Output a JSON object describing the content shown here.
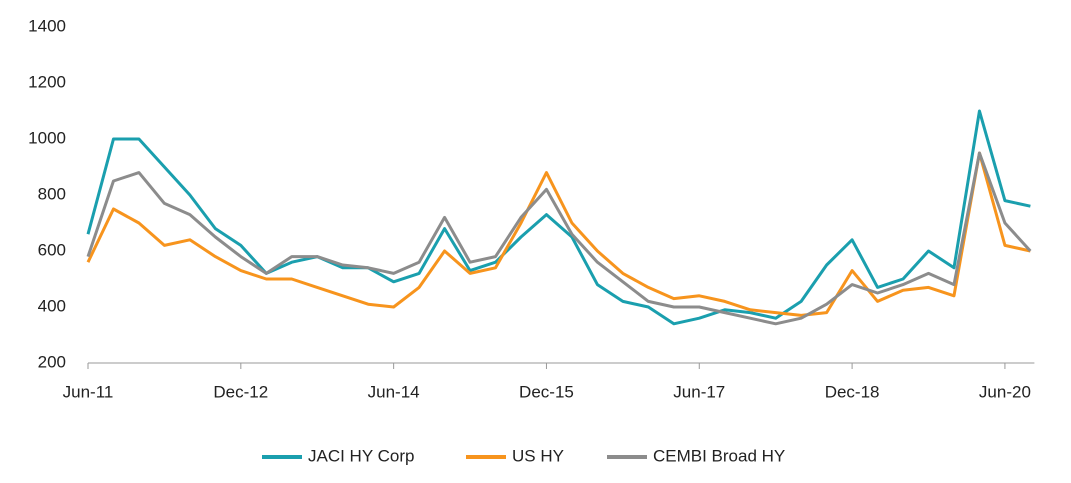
{
  "chart_data": {
    "type": "line",
    "categories": [
      "Jun-11",
      null,
      null,
      null,
      null,
      null,
      "Dec-12",
      null,
      null,
      null,
      null,
      null,
      "Jun-14",
      null,
      null,
      null,
      null,
      null,
      "Dec-15",
      null,
      null,
      null,
      null,
      null,
      "Jun-17",
      null,
      null,
      null,
      null,
      null,
      "Dec-18",
      null,
      null,
      null,
      null,
      null,
      "Jun-20",
      null
    ],
    "series": [
      {
        "name": "JACI HY Corp",
        "color": "#1a9fae",
        "values": [
          660,
          1000,
          1000,
          900,
          800,
          680,
          620,
          520,
          560,
          580,
          540,
          540,
          490,
          520,
          680,
          530,
          560,
          650,
          730,
          650,
          480,
          420,
          400,
          340,
          360,
          390,
          380,
          360,
          420,
          550,
          640,
          470,
          500,
          600,
          540,
          1100,
          780,
          760
        ]
      },
      {
        "name": "US HY",
        "color": "#f7941d",
        "values": [
          560,
          750,
          700,
          620,
          640,
          580,
          530,
          500,
          500,
          470,
          440,
          410,
          400,
          470,
          600,
          520,
          540,
          700,
          880,
          700,
          600,
          520,
          470,
          430,
          440,
          420,
          390,
          380,
          370,
          380,
          530,
          420,
          460,
          470,
          440,
          950,
          620,
          600
        ]
      },
      {
        "name": "CEMBI Broad HY",
        "color": "#8c8c8c",
        "values": [
          580,
          850,
          880,
          770,
          730,
          650,
          580,
          520,
          580,
          580,
          550,
          540,
          520,
          560,
          720,
          560,
          580,
          720,
          820,
          660,
          560,
          490,
          420,
          400,
          400,
          380,
          360,
          340,
          360,
          410,
          480,
          450,
          480,
          520,
          480,
          950,
          700,
          600
        ]
      }
    ],
    "ylim": [
      200,
      1400
    ],
    "yticks": [
      200,
      400,
      600,
      800,
      1000,
      1200,
      1400
    ],
    "grid": false,
    "legend": "bottom"
  }
}
